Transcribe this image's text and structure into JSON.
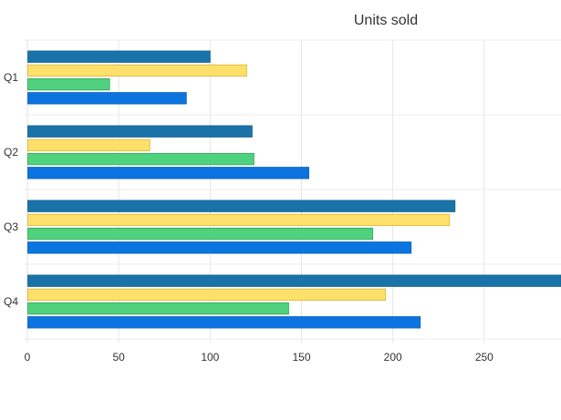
{
  "chart_data": {
    "type": "bar",
    "orientation": "horizontal",
    "title": "Units sold",
    "categories": [
      "Q1",
      "Q2",
      "Q3",
      "Q4"
    ],
    "x_ticks": [
      "0",
      "50",
      "100",
      "150",
      "200",
      "250"
    ],
    "xlim": [
      0,
      292
    ],
    "grid": true,
    "legend": "none",
    "series": [
      {
        "values": [
          100,
          123,
          234,
          292
        ],
        "color": "#1a73a8",
        "stroke": "#155f8c"
      },
      {
        "values": [
          120,
          67,
          231,
          196
        ],
        "color": "#fde06a",
        "stroke": "#d8b83a"
      },
      {
        "values": [
          45,
          124,
          189,
          143
        ],
        "color": "#4fd17d",
        "stroke": "#34a85c"
      },
      {
        "values": [
          87,
          154,
          210,
          215
        ],
        "color": "#0b74e0",
        "stroke": "#0a5fb8"
      }
    ]
  }
}
